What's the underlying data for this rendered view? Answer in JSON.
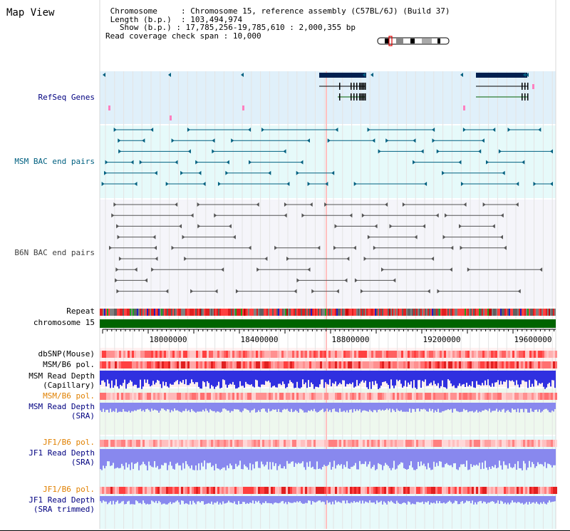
{
  "title": "Map View",
  "info": {
    "chromosome_key": "Chromosome",
    "chromosome_val": "Chromosome 15, reference assembly (C57BL/6J) (Build 37)",
    "length_key": "Length (b.p.)",
    "length_val": "103,494,974",
    "show_key": "Show (b.p.)",
    "show_val": "17,785,256-19,785,610 : 2,000,355 bp",
    "coverage_key": "Read coverage check span",
    "coverage_val": "10,000"
  },
  "tracks": {
    "refseq": "RefSeq Genes",
    "msm_bac": "MSM BAC end pairs",
    "b6n_bac": "B6N BAC end pairs",
    "repeat": "Repeat",
    "chromosome": "chromosome 15",
    "dbsnp": "dbSNP(Mouse)",
    "msm_b6_pol_1": "MSM/B6 pol.",
    "msm_read_depth_cap_1": "MSM Read Depth",
    "msm_read_depth_cap_2": "(Capillary)",
    "msm_b6_pol_2": "MSM/B6 pol.",
    "msm_read_depth_sra_1": "MSM Read Depth",
    "msm_read_depth_sra_2": "(SRA)",
    "jf1_b6_pol_1": "JF1/B6 pol.",
    "jf1_read_depth_sra_1": "JF1 Read Depth",
    "jf1_read_depth_sra_2": "(SRA)",
    "jf1_b6_pol_2": "JF1/B6 pol.",
    "jf1_read_depth_trim_1": "JF1 Read Depth",
    "jf1_read_depth_trim_2": "(SRA trimmed)"
  },
  "axis": {
    "ticks": [
      "18000000",
      "18400000",
      "18800000",
      "19200000",
      "19600000"
    ]
  },
  "colors": {
    "refseq_bg": "#e0f0fa",
    "msm_bg": "#e6fafa",
    "b6n_bg": "#f5f5fa",
    "gene": "#002050",
    "msm_pair": "#006080",
    "b6n_pair": "#555555",
    "chromosome_bar": "#006400",
    "depth_blue": "#3030e0",
    "depth_light": "#8888ee"
  }
}
